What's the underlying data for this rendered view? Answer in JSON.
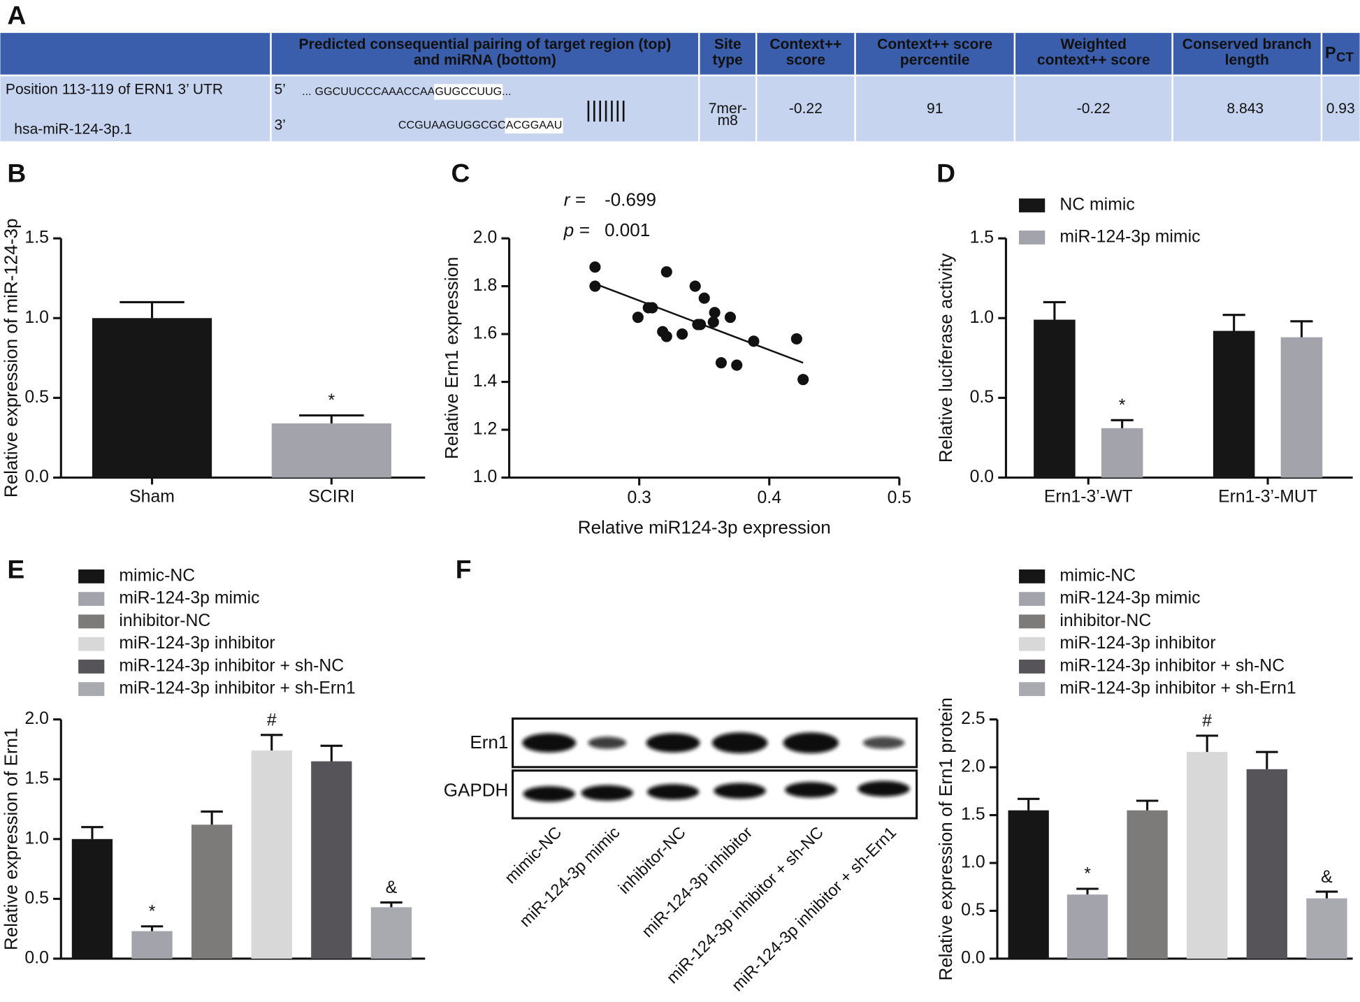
{
  "table": {
    "label": "A",
    "header": [
      [
        "Predicted consequential pairing of target region (top)",
        "and miRNA (bottom)"
      ],
      [
        "Site",
        "type"
      ],
      [
        "Context++",
        "score"
      ],
      [
        "Context++ score",
        "percentile"
      ],
      [
        "Weighted",
        "context++ score"
      ],
      [
        "Conserved branch",
        "length"
      ],
      {
        "text": "P",
        "subscript": "CT"
      }
    ],
    "row": {
      "position": "Position 113-119 of ERN1 3’ UTR",
      "mirna": "hsa-miR-124-3p.1",
      "pairing": {
        "top_prime": "5’",
        "top_dots": "...",
        "top_seq": "GGCUUCCCAAACCAA",
        "top_site": "GUGCCUUG",
        "top_end": "...",
        "bottom_prime": "3’",
        "bottom_seq": "CCGUAAGUGGCGC",
        "bottom_site": "ACGGAAU",
        "pairs": "|||||||"
      },
      "site_type": [
        "7mer-",
        "m8"
      ],
      "context_score": -0.22,
      "percentile": 91,
      "weighted_score": -0.22,
      "branch_length": 8.843,
      "pct": 0.93
    }
  },
  "blot": {
    "label": "F",
    "row_labels": [
      "Ern1",
      "GAPDH"
    ],
    "lane_labels": [
      "mimic-NC",
      "miR-124-3p mimic",
      "inhibitor-NC",
      "miR-124-3p inhibitor",
      "miR-124-3p inhibitor + sh-NC",
      "miR-124-3p inhibitor + sh-Ern1"
    ]
  },
  "chart_data": [
    {
      "type": "bar",
      "label": "B",
      "y_label": "Relative expression of miR-124-3p",
      "categories": [
        "Sham",
        "SCIRI"
      ],
      "legend": false,
      "values": [
        1.0,
        0.34
      ],
      "errors": [
        0.1,
        0.05
      ],
      "annotations": [
        null,
        "*"
      ],
      "colors": [
        "#161616",
        "#a3a3ab"
      ],
      "ylim": [
        0,
        1.5
      ],
      "yticks": [
        {
          "value": 0,
          "label": "0.0"
        },
        0.5,
        {
          "value": 1,
          "label": "1.0"
        },
        1.5
      ]
    },
    {
      "type": "scatter",
      "label": "C",
      "x_label": "Relative miR124-3p expression",
      "y_label": "Relative Ern1 expression",
      "stats": [
        {
          "label": "r =",
          "value": -0.699
        },
        {
          "label": "p =",
          "value": 0.001
        }
      ],
      "x": [
        0.266,
        0.266,
        0.321,
        0.307,
        0.31,
        0.299,
        0.343,
        0.35,
        0.358,
        0.37,
        0.345,
        0.347,
        0.357,
        0.318,
        0.321,
        0.333,
        0.388,
        0.421,
        0.363,
        0.375,
        0.426
      ],
      "y": [
        1.88,
        1.8,
        1.86,
        1.71,
        1.71,
        1.67,
        1.8,
        1.75,
        1.69,
        1.67,
        1.64,
        1.64,
        1.65,
        1.61,
        1.59,
        1.6,
        1.57,
        1.58,
        1.48,
        1.47,
        1.41
      ],
      "fit": {
        "x": [
          0.266,
          0.426
        ],
        "y": [
          1.81,
          1.48
        ]
      },
      "color": "#111111",
      "xlim": [
        0.2,
        0.5
      ],
      "xticks": [
        0.3,
        0.4,
        0.5
      ],
      "ylim": [
        1.0,
        2.0
      ],
      "yticks": [
        {
          "value": 1,
          "label": "1.0"
        },
        1.2,
        1.4,
        1.6,
        1.8,
        {
          "value": 2,
          "label": "2.0"
        }
      ]
    },
    {
      "type": "grouped_bar",
      "label": "D",
      "y_label": "Relative luciferase activity",
      "categories": [
        "Ern1-3’-WT",
        "Ern1-3’-MUT"
      ],
      "series": [
        {
          "name": "NC mimic",
          "color": "#161616",
          "values": [
            0.99,
            0.92
          ],
          "errors": [
            0.11,
            0.1
          ],
          "annotations": [
            null,
            null
          ]
        },
        {
          "name": "miR-124-3p mimic",
          "color": "#a3a3ab",
          "values": [
            0.31,
            0.88
          ],
          "errors": [
            0.05,
            0.1
          ],
          "annotations": [
            "*",
            null
          ]
        }
      ],
      "ylim": [
        0,
        1.5
      ],
      "yticks": [
        {
          "value": 0,
          "label": "0.0"
        },
        0.5,
        {
          "value": 1,
          "label": "1.0"
        },
        1.5
      ]
    },
    {
      "type": "bar",
      "label": "E",
      "y_label": "Relative expression of Ern1",
      "categories": [
        "mimic-NC",
        "miR-124-3p mimic",
        "inhibitor-NC",
        "miR-124-3p inhibitor",
        "miR-124-3p inhibitor + sh-NC",
        "miR-124-3p inhibitor + sh-Ern1"
      ],
      "legend": true,
      "values": [
        1.0,
        0.23,
        1.12,
        1.74,
        1.65,
        0.43
      ],
      "errors": [
        0.1,
        0.04,
        0.11,
        0.13,
        0.13,
        0.04
      ],
      "annotations": [
        null,
        "*",
        null,
        "#",
        null,
        "&"
      ],
      "colors": [
        "#161616",
        "#a3a3ab",
        "#7d7a7a",
        "#d8d8d8",
        "#565458",
        "#a9a9b0"
      ],
      "ylim": [
        0,
        2.0
      ],
      "yticks": [
        {
          "value": 0,
          "label": "0.0"
        },
        0.5,
        {
          "value": 1,
          "label": "1.0"
        },
        1.5,
        {
          "value": 2,
          "label": "2.0"
        }
      ]
    },
    {
      "type": "bar",
      "y_label": "Relative expression of Ern1 protein",
      "categories": [
        "mimic-NC",
        "miR-124-3p mimic",
        "inhibitor-NC",
        "miR-124-3p inhibitor",
        "miR-124-3p inhibitor + sh-NC",
        "miR-124-3p inhibitor + sh-Ern1"
      ],
      "legend": true,
      "values": [
        1.55,
        0.67,
        1.55,
        2.16,
        1.98,
        0.63
      ],
      "errors": [
        0.12,
        0.06,
        0.1,
        0.17,
        0.18,
        0.07
      ],
      "annotations": [
        null,
        "*",
        null,
        "#",
        null,
        "&"
      ],
      "colors": [
        "#161616",
        "#a3a3ab",
        "#7d7a7a",
        "#d8d8d8",
        "#565458",
        "#a9a9b0"
      ],
      "ylim": [
        0,
        2.5
      ],
      "yticks": [
        {
          "value": 0,
          "label": "0.0"
        },
        0.5,
        {
          "value": 1,
          "label": "1.0"
        },
        1.5,
        {
          "value": 2,
          "label": "2.0"
        },
        2.5
      ]
    }
  ]
}
